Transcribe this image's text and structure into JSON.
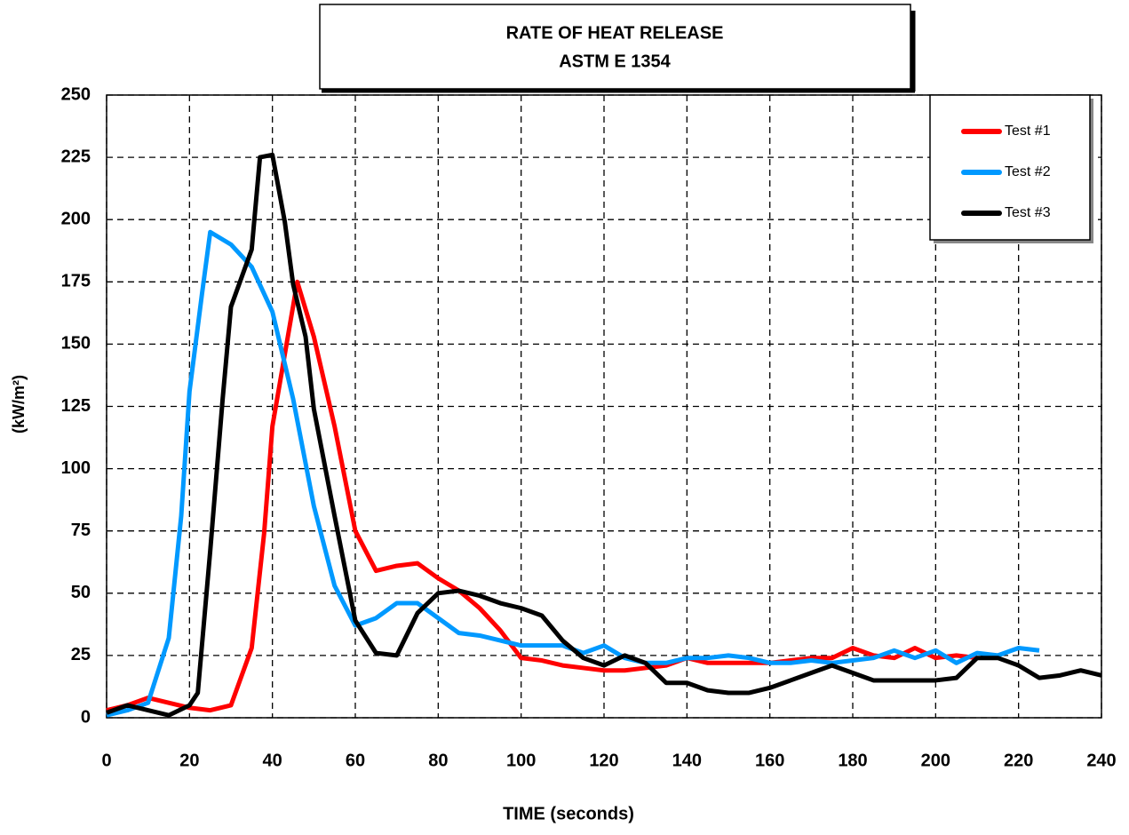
{
  "chart_data": {
    "type": "line",
    "title": "RATE OF HEAT RELEASE",
    "subtitle": "ASTM E 1354",
    "x_label": "TIME (seconds)",
    "y_label": "(kW/m²)",
    "xlim": [
      0,
      240
    ],
    "xticks": [
      0,
      20,
      40,
      60,
      80,
      100,
      120,
      140,
      160,
      180,
      200,
      220,
      240
    ],
    "ylim": [
      0,
      250
    ],
    "yticks": [
      0,
      25,
      50,
      75,
      100,
      125,
      150,
      175,
      200,
      225,
      250
    ],
    "grid": true,
    "legend": "upper right",
    "series": [
      {
        "name": "Test #1",
        "color": "#ff0000",
        "x": [
          0,
          5,
          10,
          15,
          20,
          25,
          30,
          35,
          38,
          40,
          43,
          46,
          50,
          55,
          60,
          65,
          70,
          75,
          80,
          85,
          90,
          95,
          100,
          105,
          110,
          115,
          120,
          125,
          130,
          135,
          140,
          145,
          150,
          155,
          160,
          165,
          170,
          175,
          180,
          185,
          190,
          195,
          200,
          205,
          210
        ],
        "values": [
          3,
          5,
          8,
          6,
          4,
          3,
          5,
          28,
          74,
          117,
          146,
          175,
          153,
          117,
          75,
          59,
          61,
          62,
          56,
          51,
          44,
          35,
          24,
          23,
          21,
          20,
          19,
          19,
          20,
          21,
          24,
          22,
          22,
          22,
          22,
          23,
          24,
          24,
          28,
          25,
          24,
          28,
          24,
          25,
          24
        ]
      },
      {
        "name": "Test #2",
        "color": "#0099ff",
        "x": [
          0,
          5,
          10,
          15,
          18,
          20,
          23,
          25,
          30,
          35,
          40,
          45,
          50,
          55,
          60,
          65,
          70,
          75,
          80,
          85,
          90,
          95,
          100,
          105,
          110,
          115,
          120,
          125,
          130,
          135,
          140,
          145,
          150,
          155,
          160,
          165,
          170,
          175,
          180,
          185,
          190,
          195,
          200,
          205,
          210,
          215,
          220,
          225
        ],
        "values": [
          1,
          3,
          6,
          32,
          81,
          131,
          170,
          195,
          190,
          181,
          163,
          128,
          85,
          53,
          37,
          40,
          46,
          46,
          40,
          34,
          33,
          31,
          29,
          29,
          29,
          26,
          29,
          24,
          22,
          22,
          24,
          24,
          25,
          24,
          22,
          22,
          23,
          22,
          23,
          24,
          27,
          24,
          27,
          22,
          26,
          25,
          28,
          27
        ]
      },
      {
        "name": "Test #3",
        "color": "#000000",
        "x": [
          0,
          5,
          10,
          15,
          20,
          22,
          25,
          28,
          30,
          35,
          37,
          40,
          43,
          45,
          48,
          50,
          55,
          60,
          65,
          70,
          75,
          80,
          85,
          90,
          95,
          100,
          105,
          110,
          115,
          120,
          125,
          130,
          135,
          140,
          145,
          150,
          155,
          160,
          165,
          170,
          175,
          180,
          185,
          190,
          195,
          200,
          205,
          210,
          215,
          220,
          225,
          230,
          235,
          240
        ],
        "values": [
          2,
          5,
          3,
          1,
          5,
          10,
          67,
          128,
          165,
          188,
          225,
          226,
          199,
          174,
          153,
          124,
          81,
          39,
          26,
          25,
          42,
          50,
          51,
          49,
          46,
          44,
          41,
          31,
          24,
          21,
          25,
          22,
          14,
          14,
          11,
          10,
          10,
          12,
          15,
          18,
          21,
          18,
          15,
          15,
          15,
          15,
          16,
          24,
          24,
          21,
          16,
          17,
          19,
          17
        ]
      }
    ]
  }
}
